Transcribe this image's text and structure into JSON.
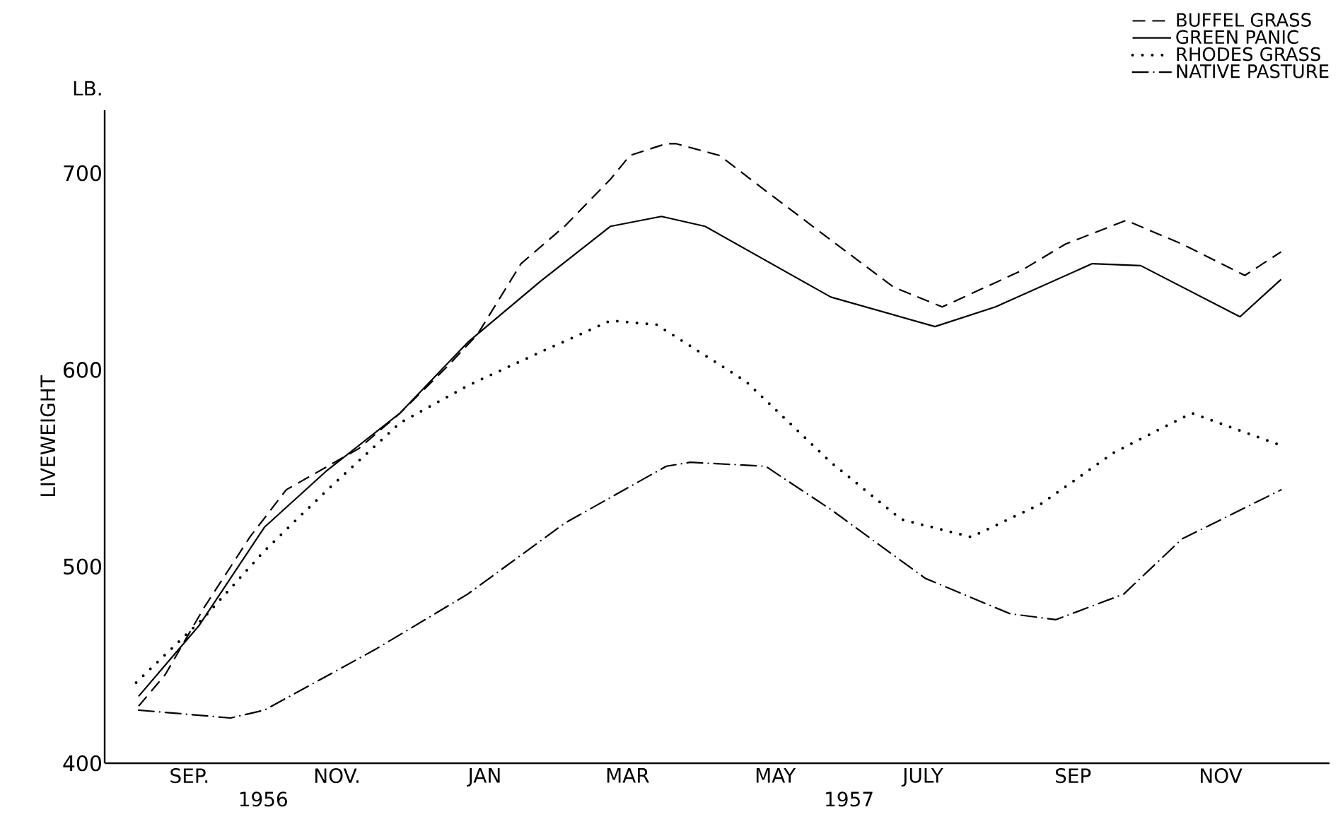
{
  "chart_data": {
    "type": "line",
    "ylabel": "LIVEWEIGHT",
    "annotations": [
      "LB.",
      "1956",
      "1957"
    ],
    "xlim": [
      "1956-07-28",
      "1957-12-16"
    ],
    "xticks": [
      {
        "value": "1956-09-01",
        "label": "SEP."
      },
      {
        "value": "1956-11-01",
        "label": "NOV."
      },
      {
        "value": "1957-01-01",
        "label": "JAN"
      },
      {
        "value": "1957-03-01",
        "label": "MAR"
      },
      {
        "value": "1957-05-01",
        "label": "MAY"
      },
      {
        "value": "1957-07-01",
        "label": "JULY"
      },
      {
        "value": "1957-09-01",
        "label": "SEP"
      },
      {
        "value": "1957-11-01",
        "label": "NOV"
      }
    ],
    "ylim": [
      400,
      732
    ],
    "yticks": [
      400,
      500,
      600,
      700
    ],
    "grid": false,
    "legend": "top right",
    "marker": "none",
    "series": [
      {
        "name": "BUFFEL GRASS",
        "color": "#000000",
        "line_style": "dashed",
        "x": [
          "1956-08-11",
          "1956-08-22",
          "1956-09-07",
          "1956-09-26",
          "1956-10-11",
          "1956-11-10",
          "1956-11-27",
          "1956-12-16",
          "1956-12-29",
          "1957-01-16",
          "1957-02-03",
          "1957-02-22",
          "1957-03-02",
          "1957-03-17",
          "1957-03-21",
          "1957-04-08",
          "1957-04-25",
          "1957-05-24",
          "1957-06-19",
          "1957-07-09",
          "1957-08-10",
          "1957-08-29",
          "1957-09-23",
          "1957-10-16",
          "1957-11-11",
          "1957-11-26"
        ],
        "values": [
          429,
          445,
          479,
          515,
          539,
          560,
          578,
          601,
          618,
          654,
          673,
          697,
          709,
          715,
          715,
          709,
          693,
          666,
          642,
          632,
          650,
          664,
          676,
          664,
          648,
          660
        ]
      },
      {
        "name": "GREEN PANIC",
        "color": "#000000",
        "line_style": "solid",
        "x": [
          "1956-08-11",
          "1956-09-05",
          "1956-10-02",
          "1956-10-28",
          "1956-11-27",
          "1956-12-25",
          "1957-01-24",
          "1957-02-22",
          "1957-03-15",
          "1957-04-02",
          "1957-05-24",
          "1957-07-06",
          "1957-07-31",
          "1957-09-09",
          "1957-09-29",
          "1957-11-09",
          "1957-11-26"
        ],
        "values": [
          434,
          470,
          520,
          549,
          578,
          614,
          645,
          673,
          678,
          673,
          637,
          622,
          632,
          654,
          653,
          627,
          646
        ]
      },
      {
        "name": "RHODES GRASS",
        "color": "#000000",
        "line_style": "dotted",
        "x": [
          "1956-08-10",
          "1956-09-07",
          "1956-10-02",
          "1956-10-28",
          "1956-11-27",
          "1956-12-25",
          "1957-01-24",
          "1957-02-22",
          "1957-03-13",
          "1957-04-19",
          "1957-05-24",
          "1957-06-22",
          "1957-07-21",
          "1957-08-19",
          "1957-09-18",
          "1957-10-20",
          "1957-11-25"
        ],
        "values": [
          441,
          474,
          508,
          539,
          573,
          592,
          609,
          625,
          623,
          594,
          553,
          524,
          515,
          532,
          558,
          578,
          562
        ]
      },
      {
        "name": "NATIVE PASTURE",
        "color": "#000000",
        "line_style": "dashdot",
        "x": [
          "1956-08-11",
          "1956-09-18",
          "1956-10-02",
          "1956-11-17",
          "1956-12-25",
          "1957-02-03",
          "1957-03-17",
          "1957-03-27",
          "1957-04-27",
          "1957-05-24",
          "1957-07-02",
          "1957-08-06",
          "1957-08-25",
          "1957-09-22",
          "1957-10-16",
          "1957-11-26"
        ],
        "values": [
          427,
          423,
          427,
          458,
          486,
          522,
          551,
          553,
          551,
          529,
          494,
          476,
          473,
          486,
          514,
          539
        ]
      }
    ]
  }
}
